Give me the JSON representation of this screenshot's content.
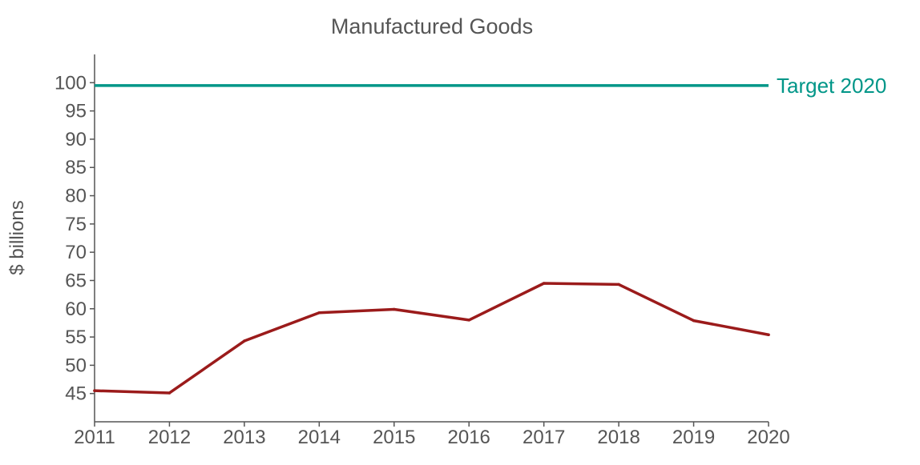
{
  "chart_data": {
    "type": "line",
    "title": "Manufactured Goods",
    "xlabel": "",
    "ylabel": "$ billions",
    "x": [
      "2011",
      "2012",
      "2013",
      "2014",
      "2015",
      "2016",
      "2017",
      "2018",
      "2019",
      "2020"
    ],
    "xlim": [
      2011,
      2020
    ],
    "ylim": [
      40,
      105
    ],
    "yticks": [
      "45",
      "50",
      "55",
      "60",
      "65",
      "70",
      "75",
      "80",
      "85",
      "90",
      "95",
      "100"
    ],
    "series": [
      {
        "values": [
          45.5,
          45.1,
          54.3,
          59.3,
          59.9,
          58.0,
          64.5,
          64.3,
          57.9,
          55.4
        ],
        "color": "#9b1b1b"
      }
    ],
    "reference_line": {
      "label": "Target 2020",
      "value": 99.5,
      "color": "#009688"
    },
    "grid": false,
    "legend": "none"
  }
}
